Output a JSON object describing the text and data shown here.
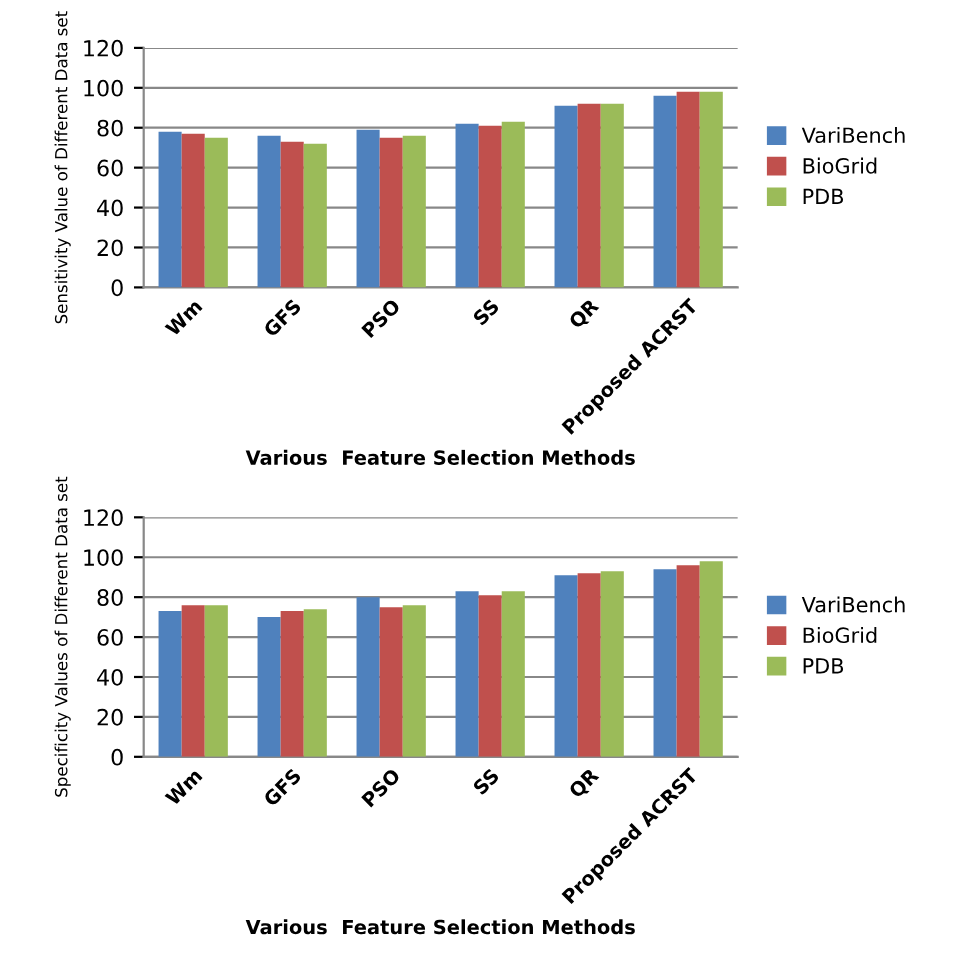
{
  "chart_data": [
    {
      "type": "bar",
      "xlabel": "Various  Feature Selection Methods",
      "ylabel": "Sensitivity Value of Different Data set",
      "categories": [
        "Wm",
        "GFS",
        "PSO",
        "SS",
        "QR",
        "Proposed ACRST"
      ],
      "series": [
        {
          "name": "VariBench",
          "color": "#4f81bd",
          "values": [
            78,
            76,
            79,
            82,
            91,
            96
          ]
        },
        {
          "name": "BioGrid",
          "color": "#c0504d",
          "values": [
            77,
            73,
            75,
            81,
            92,
            98
          ]
        },
        {
          "name": "PDB",
          "color": "#9bbb59",
          "values": [
            75,
            72,
            76,
            83,
            92,
            98
          ]
        }
      ],
      "ylim": [
        0,
        120
      ],
      "yticks": [
        0,
        20,
        40,
        60,
        80,
        100,
        120
      ],
      "grid": "y",
      "legend": "right"
    },
    {
      "type": "bar",
      "xlabel": "Various  Feature Selection Methods",
      "ylabel": "Specificity Values of Different Data set",
      "categories": [
        "Wm",
        "GFS",
        "PSO",
        "SS",
        "QR",
        "Proposed ACRST"
      ],
      "series": [
        {
          "name": "VariBench",
          "color": "#4f81bd",
          "values": [
            73,
            70,
            80,
            83,
            91,
            94
          ]
        },
        {
          "name": "BioGrid",
          "color": "#c0504d",
          "values": [
            76,
            73,
            75,
            81,
            92,
            96
          ]
        },
        {
          "name": "PDB",
          "color": "#9bbb59",
          "values": [
            76,
            74,
            76,
            83,
            93,
            98
          ]
        }
      ],
      "ylim": [
        0,
        120
      ],
      "yticks": [
        0,
        20,
        40,
        60,
        80,
        100,
        120
      ],
      "grid": "y",
      "legend": "right"
    }
  ]
}
